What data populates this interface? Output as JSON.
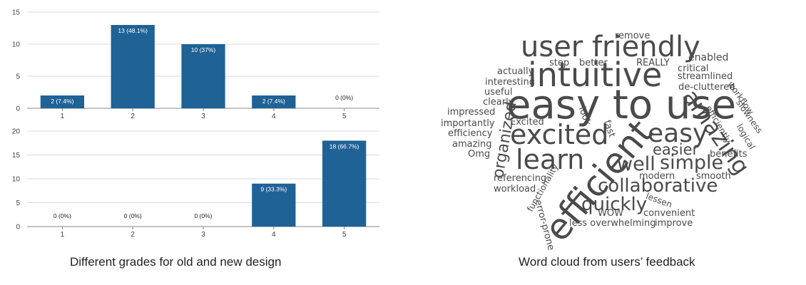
{
  "chart_data": [
    {
      "type": "bar",
      "categories": [
        "1",
        "2",
        "3",
        "4",
        "5"
      ],
      "values": [
        2,
        13,
        10,
        2,
        0
      ],
      "data_labels": [
        "2 (7.4%)",
        "13 (48.1%)",
        "10 (37%)",
        "2 (7.4%)",
        "0 (0%)"
      ],
      "y_ticks": [
        "0",
        "5",
        "10",
        "15"
      ],
      "ylim": [
        0,
        15
      ],
      "grid": true,
      "bar_color": "#1f6296"
    },
    {
      "type": "bar",
      "categories": [
        "1",
        "2",
        "3",
        "4",
        "5"
      ],
      "values": [
        0,
        0,
        0,
        9,
        18
      ],
      "data_labels": [
        "0 (0%)",
        "0 (0%)",
        "0 (0%)",
        "9 (33.3%)",
        "18 (66.7%)"
      ],
      "y_ticks": [
        "0",
        "5",
        "10",
        "15",
        "20"
      ],
      "ylim": [
        0,
        20
      ],
      "grid": true,
      "bar_color": "#1f6296"
    }
  ],
  "captions": {
    "left": "Different grades for old and new design",
    "right": "Word cloud from users’ feedback"
  },
  "word_cloud": {
    "color": "#4a4a4a",
    "words": [
      "intuitive",
      "easy to use",
      "user friendly",
      "efficient",
      "excited",
      "learn",
      "easy",
      "amazing",
      "simple",
      "well",
      "easier",
      "collaborative",
      "quickly",
      "organized",
      "remove",
      "enabled",
      "step",
      "better",
      "REALLY",
      "critical",
      "actually",
      "streamlined",
      "interesting",
      "de-cluttered",
      "workflow",
      "useful",
      "clearly",
      "slowness",
      "impressed",
      "efficiently",
      "logical",
      "importantly",
      "Excited",
      "look",
      "fast",
      "efficiency",
      "amazing",
      "Omg",
      "benefits",
      "referencing",
      "modern",
      "smooth",
      "workload",
      "functionality",
      "error-prone",
      "lessen",
      "WOW",
      "convenient",
      "less overwhelming",
      "improve"
    ]
  }
}
